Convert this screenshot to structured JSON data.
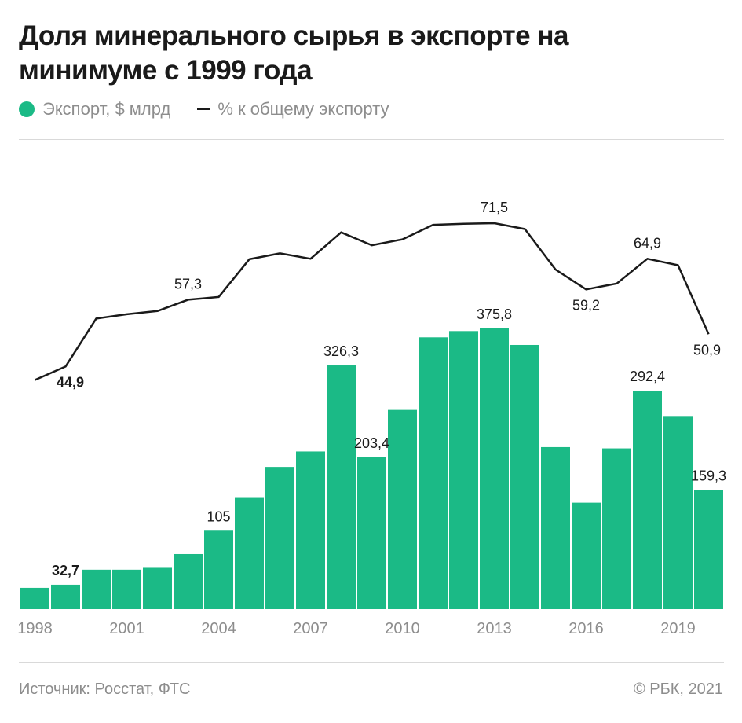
{
  "header": {
    "title": "Доля минерального сырья в экспорте на минимуме с 1999 года"
  },
  "legend": {
    "bars_label": "Экспорт, $ млрд",
    "line_label": "% к общему экспорту",
    "bar_color": "#1bba86",
    "line_color": "#1a1a1a"
  },
  "footer": {
    "source": "Источник: Росстат, ФТС",
    "copyright": "© РБК, 2021"
  },
  "chart_data": {
    "type": "bar",
    "categories": [
      "1998",
      "1999",
      "2000",
      "2001",
      "2002",
      "2003",
      "2004",
      "2005",
      "2006",
      "2007",
      "2008",
      "2009",
      "2010",
      "2011",
      "2012",
      "2013",
      "2014",
      "2015",
      "2016",
      "2017",
      "2018",
      "2019",
      "2020"
    ],
    "x_tick_labels": [
      "1998",
      "2001",
      "2004",
      "2007",
      "2010",
      "2013",
      "2016",
      "2019"
    ],
    "series": [
      {
        "name": "Экспорт, $ млрд",
        "kind": "bar",
        "values": [
          28.5,
          32.7,
          52.8,
          52.8,
          55.3,
          73.7,
          105,
          148.9,
          190.4,
          211.1,
          326.3,
          203.4,
          266.7,
          363.9,
          372.3,
          375.8,
          353.7,
          216.9,
          142.5,
          215.2,
          292.4,
          258.6,
          159.3
        ],
        "labels": {
          "1": "32,7",
          "6": "105",
          "10": "326,3",
          "11": "203,4",
          "15": "375,8",
          "20": "292,4",
          "22": "159,3"
        },
        "bold_labels": [
          "1"
        ]
      },
      {
        "name": "% к общему экспорту",
        "kind": "line",
        "values": [
          42.4,
          44.9,
          53.8,
          54.6,
          55.2,
          57.3,
          57.8,
          64.8,
          65.9,
          64.9,
          69.8,
          67.4,
          68.5,
          71.2,
          71.4,
          71.5,
          70.4,
          62.9,
          59.2,
          60.3,
          64.9,
          63.7,
          50.9
        ],
        "labels": {
          "1": "44,9",
          "5": "57,3",
          "15": "71,5",
          "18": "59,2",
          "20": "64,9",
          "22": "50,9"
        },
        "bold_labels": [
          "1"
        ]
      }
    ],
    "ylim_bars": [
      0,
      400
    ],
    "ylim_line": [
      40,
      75
    ],
    "grid": false
  }
}
